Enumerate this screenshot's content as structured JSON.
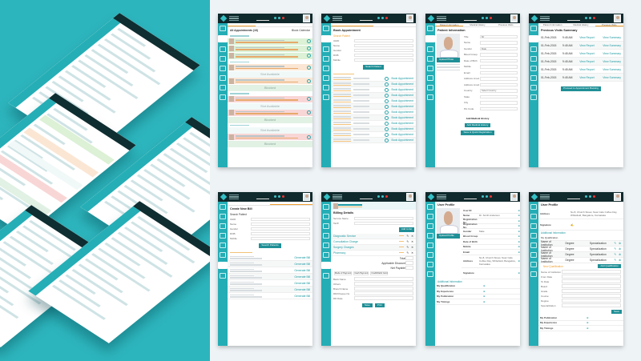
{
  "colors": {
    "teal": "#24adb5",
    "header": "#10292c",
    "accent": "#f0a030",
    "button": "#1f8f96",
    "showcase_bg": "#2db5bd"
  },
  "appointments": {
    "toolbar_label": "All Appointments (16)",
    "block_calendar": "Block Calendar",
    "rows": [
      {
        "type": "time"
      },
      {
        "type": "patient",
        "tone": "green"
      },
      {
        "type": "patient",
        "tone": "green"
      },
      {
        "type": "patient",
        "tone": "green"
      },
      {
        "type": "time"
      },
      {
        "type": "patient",
        "tone": "orange"
      },
      {
        "type": "slot",
        "label": "Slot Available"
      },
      {
        "type": "patient",
        "tone": "orange"
      },
      {
        "type": "blocked",
        "label": "Blocked"
      },
      {
        "type": "time"
      },
      {
        "type": "patient",
        "tone": "pink"
      },
      {
        "type": "slot",
        "label": "Slot Available"
      },
      {
        "type": "patient",
        "tone": "pink"
      },
      {
        "type": "blocked",
        "label": "Blocked"
      },
      {
        "type": "time"
      },
      {
        "type": "slot",
        "label": "Slot Available"
      },
      {
        "type": "patient",
        "tone": "pink"
      },
      {
        "type": "blocked",
        "label": "Blocked"
      }
    ]
  },
  "book": {
    "title": "Book Appointment",
    "search_label": "Search Patient",
    "fields": [
      "UHID",
      "Name",
      "Gender",
      "DOB",
      "Mobile"
    ],
    "search_button": "Search Patient",
    "row_action": "Book Appointment",
    "row_count": 12
  },
  "patient": {
    "tabs": [
      "Patient Information",
      "Medical History",
      "Previous Visits"
    ],
    "title": "Patient Information",
    "edit": "Edit",
    "upload": "Upload Photo",
    "fields": [
      {
        "label": "Title",
        "value": "Mr"
      },
      {
        "label": "Name",
        "value": ""
      },
      {
        "label": "Gender",
        "value": "Male"
      },
      {
        "label": "Blood Group",
        "value": ""
      },
      {
        "label": "Date of Birth",
        "value": ""
      },
      {
        "label": "Mobile",
        "value": ""
      },
      {
        "label": "Email",
        "value": ""
      },
      {
        "label": "Address Line1",
        "value": ""
      },
      {
        "label": "Address Line2",
        "value": ""
      },
      {
        "label": "Country",
        "value": "Select Country"
      },
      {
        "label": "State",
        "value": ""
      },
      {
        "label": "City",
        "value": ""
      },
      {
        "label": "Pin Code",
        "value": ""
      }
    ],
    "history_title": "Add Medical History",
    "add_history": "Add Medical History",
    "save_quick": "Save & Quick Registration"
  },
  "visits": {
    "tabs": [
      "Patient Information",
      "Medical History",
      "Previous Visits"
    ],
    "title": "Previous Visits Summary",
    "rows": [
      {
        "date": "01-Feb-2015",
        "time": "9:45 AM"
      },
      {
        "date": "01-Feb-2015",
        "time": "9:45 AM"
      },
      {
        "date": "01-Feb-2015",
        "time": "9:45 AM"
      },
      {
        "date": "01-Feb-2015",
        "time": "9:45 AM"
      },
      {
        "date": "01-Feb-2015",
        "time": "9:45 AM"
      },
      {
        "date": "01-Feb-2015",
        "time": "9:45 AM"
      }
    ],
    "view_report": "View Report",
    "view_summary": "View Summary",
    "proceed": "Proceed to Appointment Booking"
  },
  "bill": {
    "title": "Create New Bill",
    "search_label": "Search Patient",
    "fields": [
      "UHID",
      "Name",
      "Gender",
      "DOB",
      "Mobile"
    ],
    "search_button": "Search Patients",
    "row_action": "Generate Bill",
    "row_count": 7
  },
  "billing": {
    "title": "Billing Details",
    "service_label": "Service Name",
    "tariff_label": "Tariff",
    "add": "Add to list",
    "items": [
      "Diagnostic Service",
      "Consultation Charge",
      "Surgery Charges",
      "Pharmacy"
    ],
    "totals": [
      "Total",
      "Applicable Discount",
      "Net Payable"
    ],
    "payment": [
      "Mode of Payment",
      "Cash Payment",
      "Credit/Debit Card"
    ],
    "bank_fields": [
      "Bank Name",
      "Others",
      "Branch Name",
      "DD/Cheque No",
      "DD Date"
    ],
    "save": "Save",
    "print": "Print"
  },
  "profile": {
    "title": "User Profile",
    "edit": "Edit",
    "upload": "Upload Profile",
    "fields": [
      {
        "k": "User ID",
        "v": ""
      },
      {
        "k": "Name",
        "v": "Dr. Smith Anderson"
      },
      {
        "k": "Registration No.",
        "v": ""
      },
      {
        "k": "Registration No.",
        "v": ""
      },
      {
        "k": "Gender",
        "v": "Male"
      },
      {
        "k": "Blood Group",
        "v": ""
      },
      {
        "k": "Date of Birth",
        "v": ""
      },
      {
        "k": "Mobile",
        "v": ""
      },
      {
        "k": "Email",
        "v": ""
      },
      {
        "k": "Address",
        "v": "No.8, Church Street, Near Cafe Coffee Day, Whitefield, Bangalore, Karnataka"
      },
      {
        "k": "Signature",
        "v": ""
      }
    ],
    "additional": "Additional Information",
    "sections": [
      "My Qualification",
      "My Experience",
      "My Publication",
      "My Timings"
    ]
  },
  "profile2": {
    "title": "User Profile",
    "edit": "Edit",
    "address_label": "Address",
    "address": "No.8, Church Street, Near Cafe Coffee Day, Whitefield, Bangalore, Karnataka",
    "signature_label": "Signature",
    "additional": "Additional Information",
    "my_qual": "My Qualification",
    "qual_cols": [
      "Name of Institution",
      "Degree",
      "Specialization"
    ],
    "qual_rows": 4,
    "new_qual": "New Qualification",
    "add_qual": "Add Qualification",
    "new_fields": [
      "Name of Institution",
      "From Date",
      "To Date",
      "Board",
      "Grade",
      "Course",
      "Degree",
      "Specialization"
    ],
    "save": "Save",
    "sections": [
      "My Publication",
      "My Experience",
      "My Timings"
    ]
  }
}
